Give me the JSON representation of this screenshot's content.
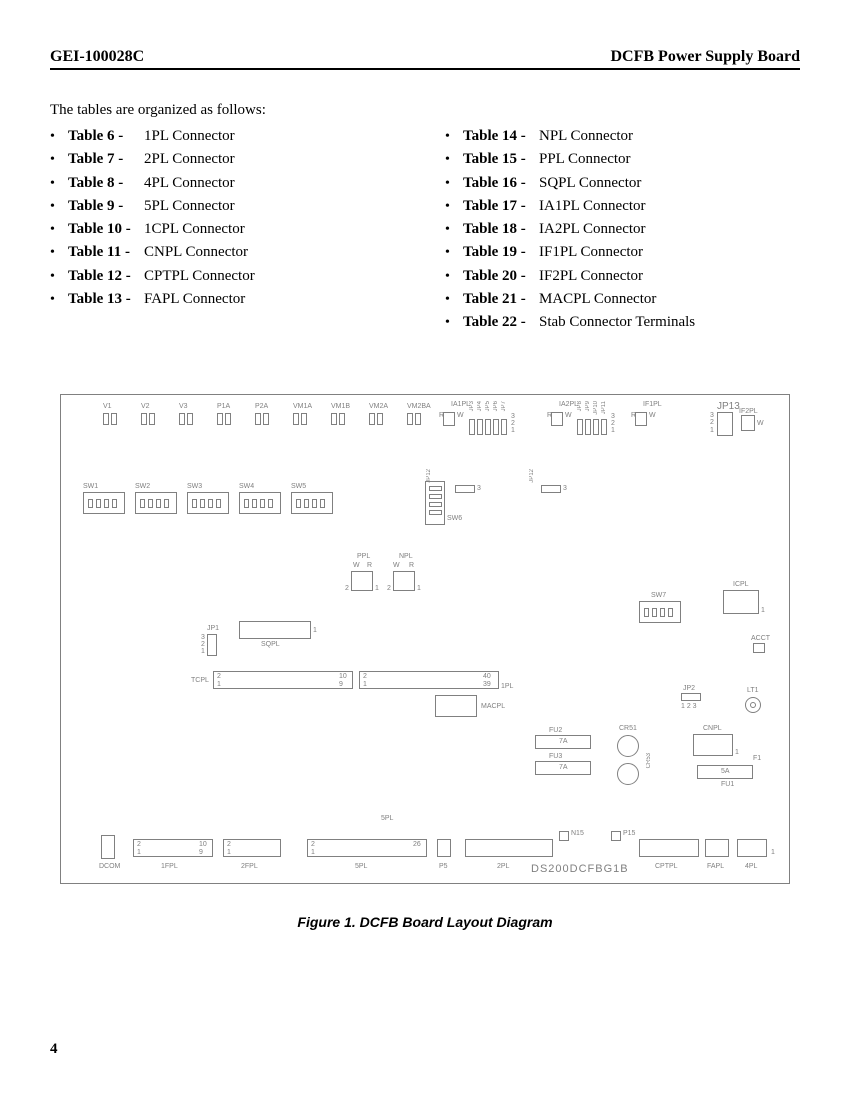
{
  "header": {
    "left": "GEI-100028C",
    "right": "DCFB Power Supply Board"
  },
  "intro": "The tables are organized as follows:",
  "left_col": [
    {
      "num": "Table 6",
      "desc": "1PL Connector"
    },
    {
      "num": "Table 7",
      "desc": "2PL Connector"
    },
    {
      "num": "Table 8",
      "desc": "4PL Connector"
    },
    {
      "num": "Table 9",
      "desc": "5PL Connector"
    },
    {
      "num": "Table 10",
      "desc": "1CPL Connector"
    },
    {
      "num": "Table 11",
      "desc": "CNPL Connector"
    },
    {
      "num": "Table 12",
      "desc": "CPTPL Connector"
    },
    {
      "num": "Table 13",
      "desc": "FAPL Connector"
    }
  ],
  "right_col": [
    {
      "num": "Table 14",
      "desc": "NPL Connector"
    },
    {
      "num": "Table 15",
      "desc": "PPL Connector"
    },
    {
      "num": "Table 16",
      "desc": "SQPL Connector"
    },
    {
      "num": "Table 17",
      "desc": "IA1PL Connector"
    },
    {
      "num": "Table 18",
      "desc": "IA2PL Connector"
    },
    {
      "num": "Table 19",
      "desc": "IF1PL Connector"
    },
    {
      "num": "Table 20",
      "desc": "IF2PL Connector"
    },
    {
      "num": "Table 21",
      "desc": "MACPL Connector"
    },
    {
      "num": "Table 22",
      "desc": "Stab Connector Terminals"
    }
  ],
  "caption": "Figure 1.  DCFB Board Layout Diagram",
  "pagenum": "4",
  "board": {
    "part_number": "DS200DCFBG1B",
    "top_tp": [
      "V1",
      "V2",
      "V3",
      "P1A",
      "P2A",
      "VM1A",
      "VM1B",
      "VM2A",
      "VM2BA"
    ],
    "ia1": "IA1PL",
    "ia2": "IA2PL",
    "if1": "IF1PL",
    "if2": "IF2PL",
    "jp13": "JP13",
    "jp_top1": [
      "JP3",
      "JP4",
      "JP5",
      "JP6",
      "JP7"
    ],
    "jp_top2": [
      "JP8",
      "JP9",
      "JP10",
      "JP11"
    ],
    "sw": [
      "SW1",
      "SW2",
      "SW3",
      "SW4",
      "SW5"
    ],
    "sw6": "SW6",
    "sw7": "SW7",
    "jp12": "JP12",
    "jp12b": "JP12",
    "ppl": "PPL",
    "npl": "NPL",
    "jp1": "JP1",
    "sqpl": "SQPL",
    "tcpl": "TCPL",
    "onepl": "1PL",
    "macpl": "MACPL",
    "icpl": "ICPL",
    "acct": "ACCT",
    "jp2": "JP2",
    "lt1": "LT1",
    "fu2": "FU2",
    "fu2a": "7A",
    "fu3": "FU3",
    "fu3a": "7A",
    "cr51": "CR51",
    "cr53": "CR53",
    "cnpl": "CNPL",
    "f1": "F1",
    "fu1": "FU1",
    "fu1a": "5A",
    "fivepl_top": "5PL",
    "n15": "N15",
    "p15": "P15",
    "dcom": "DCOM",
    "onefpl": "1FPL",
    "twofpl": "2FPL",
    "fivepl": "5PL",
    "p5": "P5",
    "twopl": "2PL",
    "cptpl": "CPTPL",
    "fapl": "FAPL",
    "fourpl": "4PL",
    "r": "R",
    "w": "W",
    "one": "1",
    "two": "2",
    "three": "3",
    "nine": "9",
    "ten": "10",
    "thirtynine": "39",
    "forty": "40",
    "twentysix": "26",
    "onetwothree": "1 2 3"
  }
}
